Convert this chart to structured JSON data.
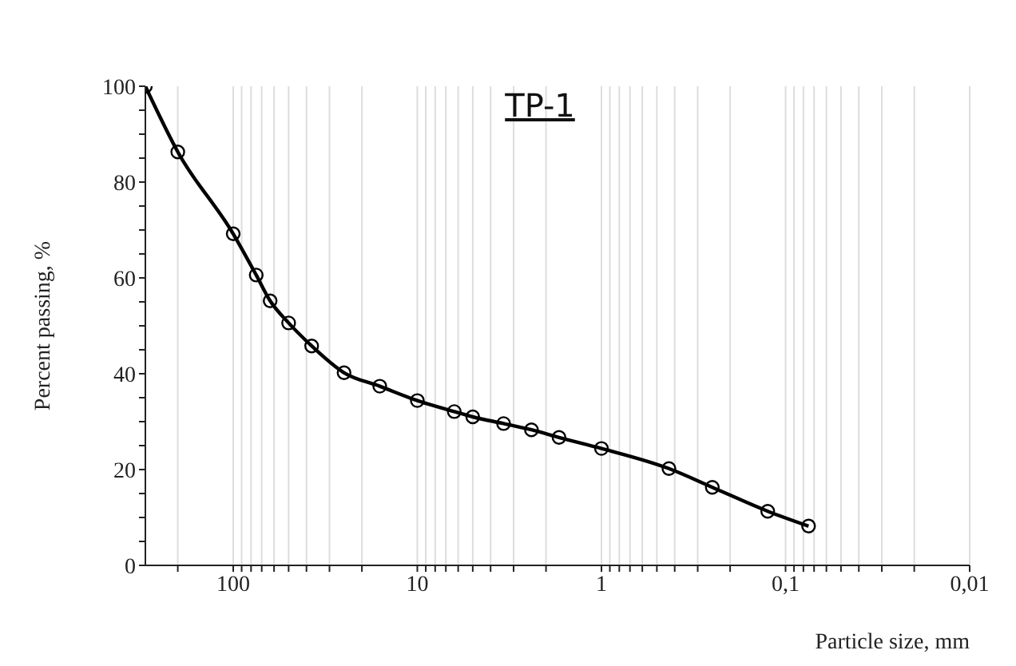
{
  "chart_data": {
    "type": "line",
    "title": "TP-1",
    "xlabel": "Particle size, mm",
    "ylabel": "Percent passing, %",
    "log": "x",
    "grid": "x",
    "marker": "circle",
    "line_style": "solid",
    "legend": false,
    "x": [
      300,
      200,
      100,
      75,
      63,
      50,
      37.5,
      25,
      16,
      10,
      6.3,
      5,
      3.4,
      2.4,
      1.7,
      1,
      0.43,
      0.25,
      0.125,
      0.075
    ],
    "series": [
      {
        "color": "#000000",
        "values": [
          100,
          86.3,
          69.2,
          60.6,
          55.2,
          50.6,
          45.8,
          40.2,
          37.4,
          34.4,
          32.1,
          31.0,
          29.6,
          28.3,
          26.7,
          24.4,
          20.2,
          16.3,
          11.3,
          8.2
        ]
      }
    ],
    "xlim": [
      300,
      0.01
    ],
    "xticks": [
      {
        "value": 200,
        "label": null
      },
      100,
      {
        "value": 90,
        "label": null
      },
      {
        "value": 80,
        "label": null
      },
      {
        "value": 70,
        "label": null
      },
      {
        "value": 60,
        "label": null
      },
      {
        "value": 50,
        "label": null
      },
      {
        "value": 40,
        "label": null
      },
      {
        "value": 30,
        "label": null
      },
      {
        "value": 20,
        "label": null
      },
      10,
      {
        "value": 9,
        "label": null
      },
      {
        "value": 8,
        "label": null
      },
      {
        "value": 7,
        "label": null
      },
      {
        "value": 6,
        "label": null
      },
      {
        "value": 5,
        "label": null
      },
      {
        "value": 4,
        "label": null
      },
      {
        "value": 3,
        "label": null
      },
      {
        "value": 2,
        "label": null
      },
      1,
      {
        "value": 0.9,
        "label": null
      },
      {
        "value": 0.8,
        "label": null
      },
      {
        "value": 0.7,
        "label": null
      },
      {
        "value": 0.6,
        "label": null
      },
      {
        "value": 0.5,
        "label": null
      },
      {
        "value": 0.4,
        "label": null
      },
      {
        "value": 0.3,
        "label": null
      },
      {
        "value": 0.2,
        "label": null
      },
      {
        "value": 0.1,
        "label": "0,1"
      },
      {
        "value": 0.09,
        "label": null
      },
      {
        "value": 0.08,
        "label": null
      },
      {
        "value": 0.07,
        "label": null
      },
      {
        "value": 0.06,
        "label": null
      },
      {
        "value": 0.05,
        "label": null
      },
      {
        "value": 0.04,
        "label": null
      },
      {
        "value": 0.03,
        "label": null
      },
      {
        "value": 0.02,
        "label": null
      },
      {
        "value": 0.01,
        "label": "0,01"
      }
    ],
    "ylim": [
      0,
      100
    ],
    "yticks": [
      0,
      {
        "value": 5,
        "label": null
      },
      {
        "value": 10,
        "label": null
      },
      {
        "value": 15,
        "label": null
      },
      20,
      {
        "value": 25,
        "label": null
      },
      {
        "value": 30,
        "label": null
      },
      {
        "value": 35,
        "label": null
      },
      40,
      {
        "value": 45,
        "label": null
      },
      {
        "value": 50,
        "label": null
      },
      {
        "value": 55,
        "label": null
      },
      60,
      {
        "value": 65,
        "label": null
      },
      {
        "value": 70,
        "label": null
      },
      {
        "value": 75,
        "label": null
      },
      80,
      {
        "value": 85,
        "label": null
      },
      {
        "value": 90,
        "label": null
      },
      {
        "value": 95,
        "label": null
      },
      100
    ]
  }
}
